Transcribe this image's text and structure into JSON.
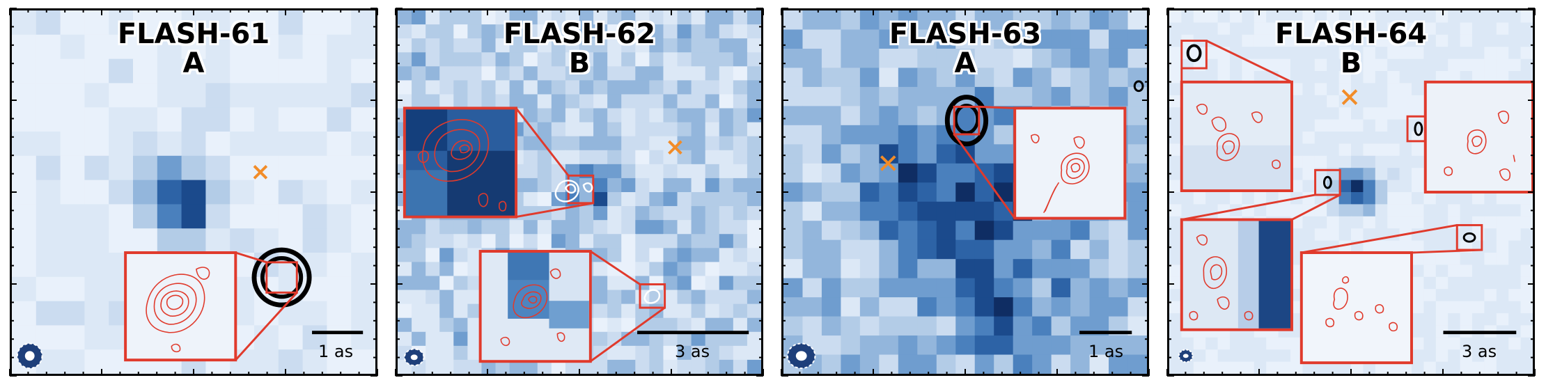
{
  "panels": [
    {
      "title": "FLASH-61",
      "label": "A",
      "scale": "1 as"
    },
    {
      "title": "FLASH-62",
      "label": "B",
      "scale": "3 as"
    },
    {
      "title": "FLASH-63",
      "label": "A",
      "scale": "1 as"
    },
    {
      "title": "FLASH-64",
      "label": "B",
      "scale": "3 as"
    }
  ],
  "colors": {
    "inset_border": "#e03a2c",
    "contour": "#e03a2c",
    "cross_marker": "#f28c28",
    "beam": "#1e3f7a",
    "map_dark": "#0f2d63",
    "map_light": "#e9f1fb"
  }
}
